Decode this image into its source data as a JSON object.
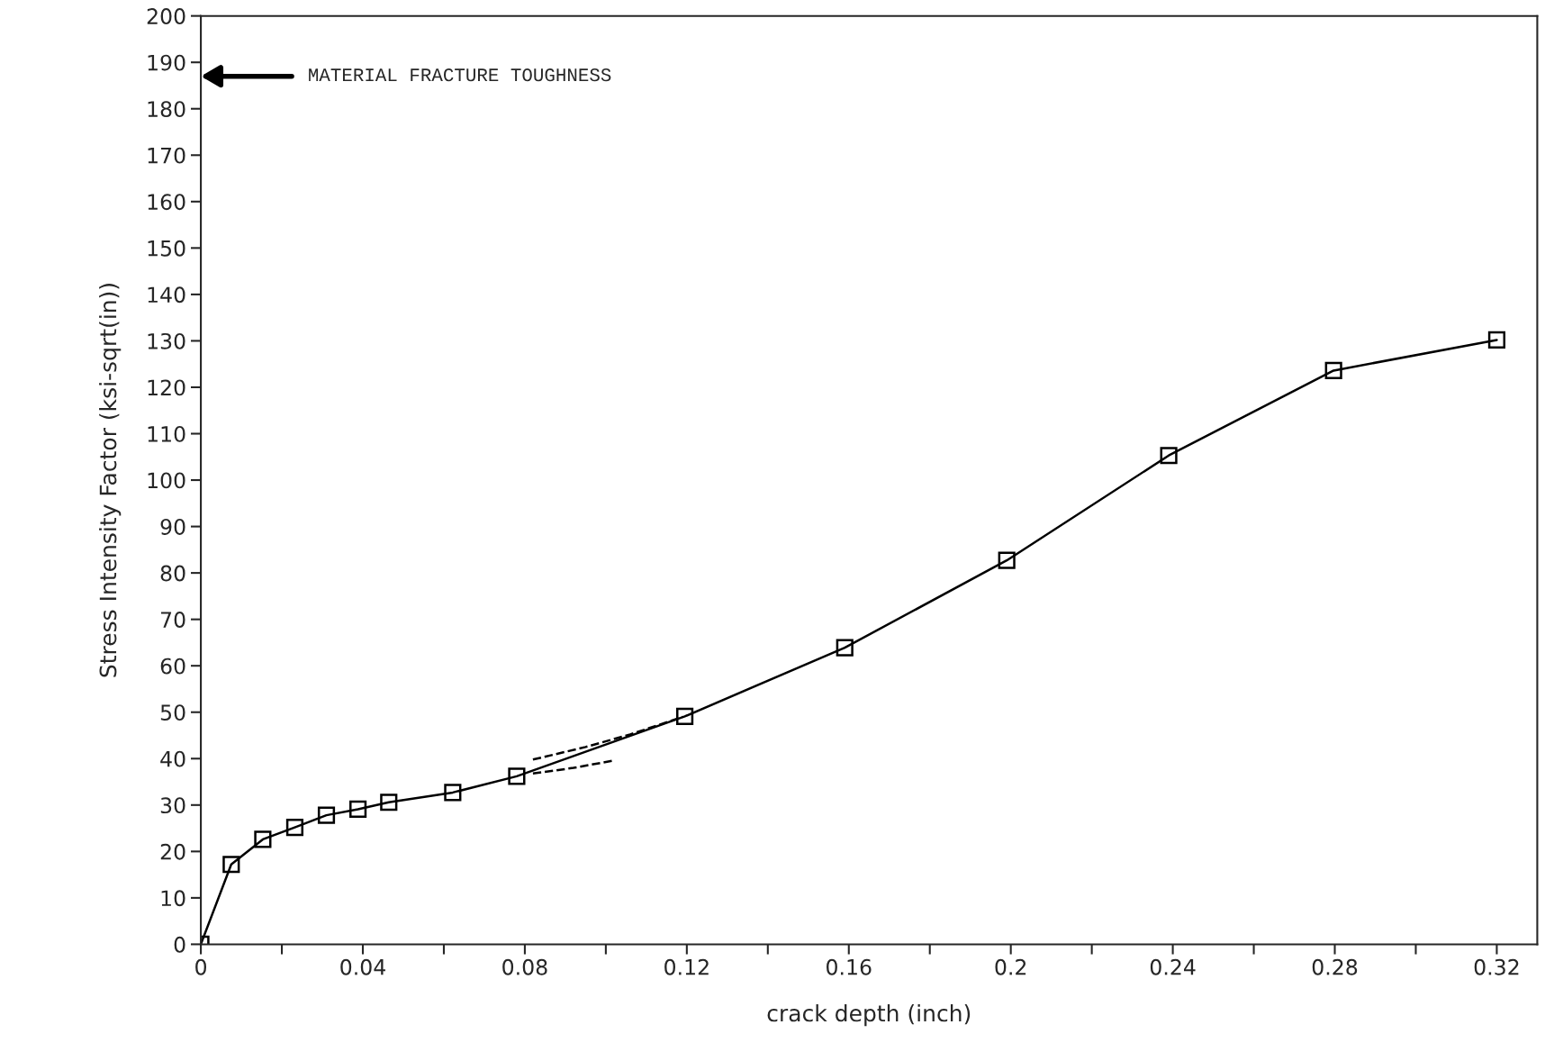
{
  "chart_data": {
    "type": "line",
    "xlabel": "crack depth (inch)",
    "ylabel": "Stress Intensity Factor (ksi-sqrt(in))",
    "series": [
      {
        "color": "#000000",
        "marker": "square",
        "line_style": "solid",
        "x": [
          0,
          0.0075,
          0.0153,
          0.0232,
          0.031,
          0.0388,
          0.0464,
          0.0622,
          0.078,
          0.1195,
          0.159,
          0.199,
          0.239,
          0.2797,
          0.32
        ],
        "values": [
          0,
          17.2,
          22.6,
          25.2,
          27.8,
          29.1,
          30.6,
          32.7,
          36.2,
          49.1,
          63.9,
          82.7,
          105.3,
          123.6,
          130.2
        ]
      },
      {
        "color": "#000000",
        "marker": "none",
        "line_style": "dashed",
        "x": [
          0.082,
          0.095,
          0.106,
          0.119
        ],
        "values": [
          39.8,
          42.5,
          45.2,
          49.0
        ]
      },
      {
        "color": "#000000",
        "marker": "none",
        "line_style": "dashed",
        "x": [
          0.082,
          0.092,
          0.102
        ],
        "values": [
          36.8,
          38.0,
          39.6
        ]
      }
    ],
    "xlim": [
      0,
      0.33
    ],
    "ylim": [
      0,
      200
    ],
    "xticks": [
      0,
      {
        "value": 0.02,
        "label": null
      },
      0.04,
      {
        "value": 0.06,
        "label": null
      },
      0.08,
      {
        "value": 0.1,
        "label": null
      },
      0.12,
      {
        "value": 0.14,
        "label": null
      },
      0.16,
      {
        "value": 0.18,
        "label": null
      },
      0.2,
      {
        "value": 0.22,
        "label": null
      },
      0.24,
      {
        "value": 0.26,
        "label": null
      },
      0.28,
      {
        "value": 0.3,
        "label": null
      },
      0.32
    ],
    "yticks": [
      0,
      10,
      20,
      30,
      40,
      50,
      60,
      70,
      80,
      90,
      100,
      110,
      120,
      130,
      140,
      150,
      160,
      170,
      180,
      190,
      200
    ],
    "grid": false,
    "annotations": [
      "MATERIAL FRACTURE TOUGHNESS"
    ]
  }
}
